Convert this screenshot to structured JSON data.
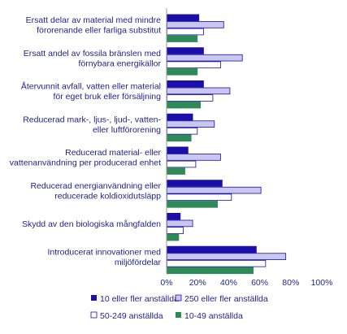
{
  "chart_data": {
    "type": "bar",
    "orientation": "horizontal",
    "categories": [
      [
        "Ersatt delar av material med mindre",
        "förorenande eller farliga substitut"
      ],
      [
        "Ersatt andel av fossila bränslen med",
        "förnybara energikällor"
      ],
      [
        "Återvunnit avfall, vatten eller material",
        "för eget bruk eller försäljning"
      ],
      [
        "Reducerad mark-, ljus-, ljud-, vatten-",
        "eller luftförorening"
      ],
      [
        "Reducerad material- eller",
        "vattenanvändning per producerad enhet"
      ],
      [
        "Reducerad energianvändning eller",
        "reducerade koldioxidutsläpp"
      ],
      [
        "Skydd av den biologiska mångfalden"
      ],
      [
        "Introducerat innovationer med",
        "miljöfördelar"
      ]
    ],
    "series": [
      {
        "name": "10 eller fler anställda",
        "color": "#1a0fa8",
        "style": "solid",
        "values": [
          21,
          24,
          24,
          17,
          14,
          36,
          9,
          58
        ]
      },
      {
        "name": "250 eller fler anställda",
        "color": "#c9c6ef",
        "style": "light",
        "values": [
          37,
          49,
          41,
          31,
          35,
          61,
          17,
          77
        ]
      },
      {
        "name": "50-249 anställda",
        "color": "#ffffff",
        "style": "outline",
        "values": [
          24,
          35,
          30,
          20,
          19,
          42,
          11,
          64
        ]
      },
      {
        "name": "10-49 anställda",
        "color": "#2e8b57",
        "style": "solid",
        "values": [
          20,
          20,
          22,
          16,
          12,
          33,
          8,
          56
        ]
      }
    ],
    "xlim": [
      0,
      100
    ],
    "xticks": [
      "0%",
      "20%",
      "40%",
      "60%",
      "80%",
      "100%"
    ],
    "grid": false,
    "legend_position": "bottom",
    "title": "",
    "xlabel": "",
    "ylabel": ""
  }
}
